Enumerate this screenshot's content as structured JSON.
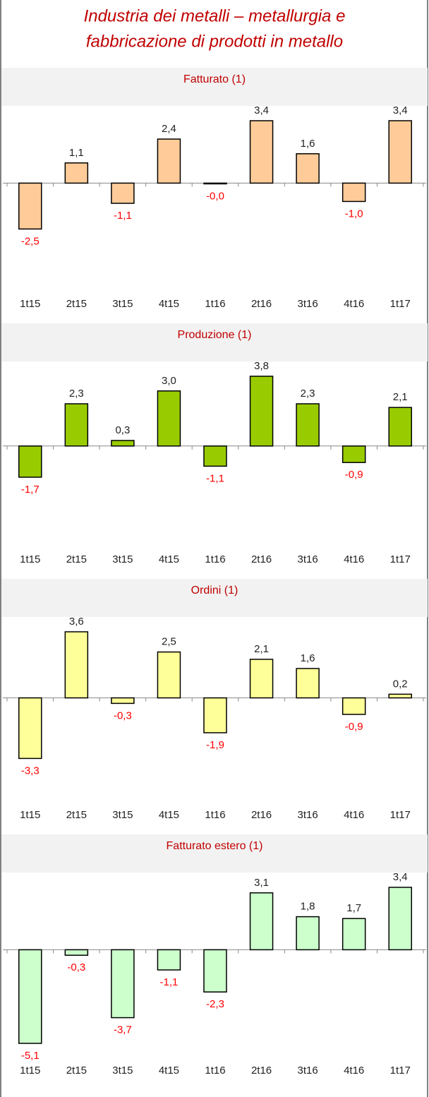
{
  "title": [
    "Industria dei metalli – metallurgia e",
    "fabbricazione di prodotti in metallo"
  ],
  "chart_data": [
    {
      "type": "bar",
      "title": "Fatturato (1)",
      "color": "#ffcc99",
      "categories": [
        "1t15",
        "2t15",
        "3t15",
        "4t15",
        "1t16",
        "2t16",
        "3t16",
        "4t16",
        "1t17"
      ],
      "values": [
        -2.5,
        1.1,
        -1.1,
        2.4,
        -0.04,
        3.4,
        1.6,
        -1.0,
        3.4
      ],
      "value_labels": [
        "-2,5",
        "1,1",
        "-1,1",
        "2,4",
        "-0,0",
        "3,4",
        "1,6",
        "-1,0",
        "3,4"
      ]
    },
    {
      "type": "bar",
      "title": "Produzione (1)",
      "color": "#99cc00",
      "categories": [
        "1t15",
        "2t15",
        "3t15",
        "4t15",
        "1t16",
        "2t16",
        "3t16",
        "4t16",
        "1t17"
      ],
      "values": [
        -1.7,
        2.3,
        0.3,
        3.0,
        -1.1,
        3.8,
        2.3,
        -0.9,
        2.1
      ],
      "value_labels": [
        "-1,7",
        "2,3",
        "0,3",
        "3,0",
        "-1,1",
        "3,8",
        "2,3",
        "-0,9",
        "2,1"
      ]
    },
    {
      "type": "bar",
      "title": "Ordini (1)",
      "color": "#ffff99",
      "categories": [
        "1t15",
        "2t15",
        "3t15",
        "4t15",
        "1t16",
        "2t16",
        "3t16",
        "4t16",
        "1t17"
      ],
      "values": [
        -3.3,
        3.6,
        -0.3,
        2.5,
        -1.9,
        2.1,
        1.6,
        -0.9,
        0.2
      ],
      "value_labels": [
        "-3,3",
        "3,6",
        "-0,3",
        "2,5",
        "-1,9",
        "2,1",
        "1,6",
        "-0,9",
        "0,2"
      ]
    },
    {
      "type": "bar",
      "title": "Fatturato estero (1)",
      "color": "#ccffcc",
      "categories": [
        "1t15",
        "2t15",
        "3t15",
        "4t15",
        "1t16",
        "2t16",
        "3t16",
        "4t16",
        "1t17"
      ],
      "values": [
        -5.1,
        -0.3,
        -3.7,
        -1.1,
        -2.3,
        3.1,
        1.8,
        1.7,
        3.4
      ],
      "value_labels": [
        "-5,1",
        "-0,3",
        "-3,7",
        "-1,1",
        "-2,3",
        "3,1",
        "1,8",
        "1,7",
        "3,4"
      ]
    }
  ]
}
